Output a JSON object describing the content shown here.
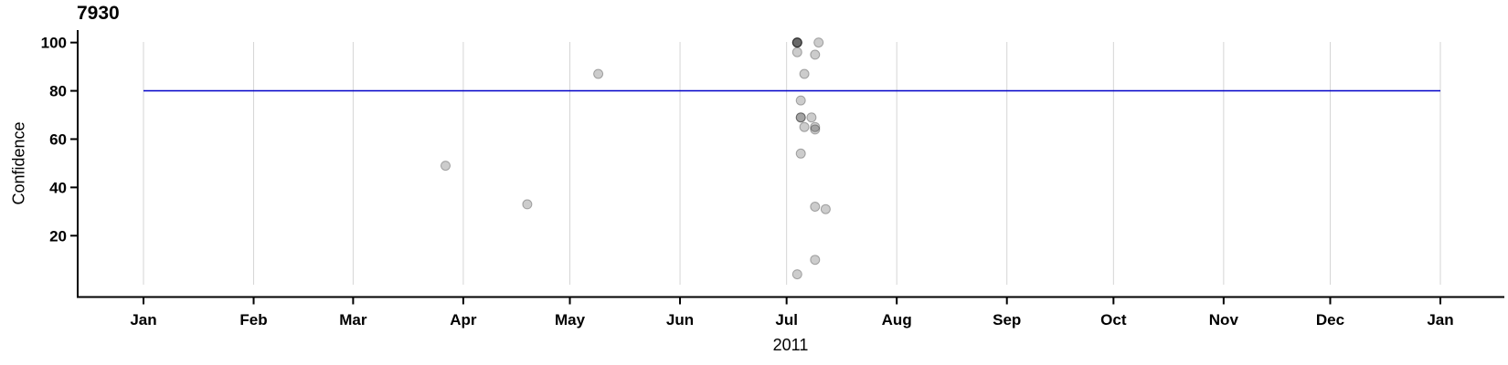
{
  "chart_data": {
    "type": "scatter",
    "title": "7930",
    "xlabel": "2011",
    "ylabel": "Confidence",
    "x_axis": {
      "tick_labels": [
        "Jan",
        "Feb",
        "Mar",
        "Apr",
        "May",
        "Jun",
        "Jul",
        "Aug",
        "Sep",
        "Oct",
        "Nov",
        "Dec",
        "Jan"
      ],
      "range": [
        "2011-01-01",
        "2012-01-01"
      ],
      "grid": true
    },
    "y_axis": {
      "tick_values": [
        20,
        40,
        60,
        80,
        100
      ],
      "range": [
        0,
        100
      ],
      "grid": false
    },
    "reference_line": {
      "orientation": "horizontal",
      "value": 80,
      "color": "#0000C8"
    },
    "legend": "none",
    "colors": {
      "point_fill": "rgba(0,0,0,0.20)",
      "point_edge": "rgba(0,0,0,0.30)",
      "gridline": "#D5D5D5",
      "axis": "#000000"
    },
    "points": [
      {
        "date": "2011-03-27",
        "confidence": 49
      },
      {
        "date": "2011-04-19",
        "confidence": 33
      },
      {
        "date": "2011-05-09",
        "confidence": 87
      },
      {
        "date": "2011-07-04",
        "confidence": 100,
        "n": 4
      },
      {
        "date": "2011-07-10",
        "confidence": 100
      },
      {
        "date": "2011-07-04",
        "confidence": 96
      },
      {
        "date": "2011-07-09",
        "confidence": 95
      },
      {
        "date": "2011-07-06",
        "confidence": 87
      },
      {
        "date": "2011-07-05",
        "confidence": 76
      },
      {
        "date": "2011-07-05",
        "confidence": 69,
        "n": 2
      },
      {
        "date": "2011-07-08",
        "confidence": 69
      },
      {
        "date": "2011-07-06",
        "confidence": 65
      },
      {
        "date": "2011-07-09",
        "confidence": 65
      },
      {
        "date": "2011-07-09",
        "confidence": 64
      },
      {
        "date": "2011-07-05",
        "confidence": 54
      },
      {
        "date": "2011-07-09",
        "confidence": 32
      },
      {
        "date": "2011-07-12",
        "confidence": 31
      },
      {
        "date": "2011-07-09",
        "confidence": 10
      },
      {
        "date": "2011-07-04",
        "confidence": 4
      }
    ]
  }
}
